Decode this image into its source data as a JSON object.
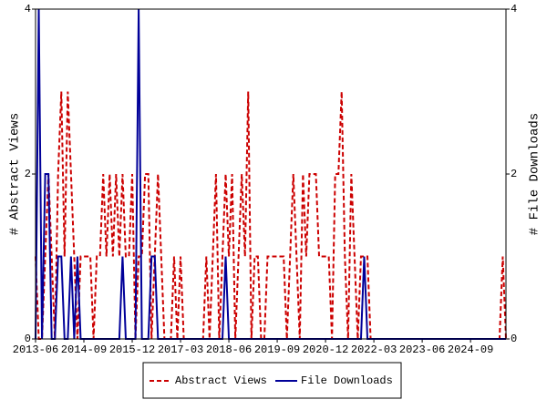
{
  "chart_data": {
    "type": "line",
    "y_label": "# Abstract Views",
    "y2_label": "# File Downloads",
    "categories": [
      "2013-06",
      null,
      null,
      null,
      null,
      null,
      null,
      null,
      null,
      null,
      null,
      null,
      null,
      null,
      null,
      "2014-09",
      null,
      null,
      null,
      null,
      null,
      null,
      null,
      null,
      null,
      null,
      null,
      null,
      null,
      null,
      "2015-12",
      null,
      null,
      null,
      null,
      null,
      null,
      null,
      null,
      null,
      null,
      null,
      null,
      null,
      null,
      "2017-03",
      null,
      null,
      null,
      null,
      null,
      null,
      null,
      null,
      null,
      null,
      null,
      null,
      null,
      null,
      "2018-06",
      null,
      null,
      null,
      null,
      null,
      null,
      null,
      null,
      null,
      null,
      null,
      null,
      null,
      null,
      "2019-09",
      null,
      null,
      null,
      null,
      null,
      null,
      null,
      null,
      null,
      null,
      null,
      null,
      null,
      null,
      "2020-12",
      null,
      null,
      null,
      null,
      null,
      null,
      null,
      null,
      null,
      null,
      null,
      null,
      null,
      null,
      "2022-03",
      null,
      null,
      null,
      null,
      null,
      null,
      null,
      null,
      null,
      null,
      null,
      null,
      null,
      null,
      "2023-06",
      null,
      null,
      null,
      null,
      null,
      null,
      null,
      null,
      null,
      null,
      null,
      null,
      null,
      null,
      "2024-09",
      null,
      null,
      null,
      null,
      null,
      null,
      null,
      null,
      null,
      null,
      null
    ],
    "series": [
      {
        "name": "Abstract Views",
        "color": "#cc0000",
        "dash": true,
        "values": [
          1,
          0,
          0,
          1,
          2,
          1,
          0,
          2,
          3,
          1,
          3,
          2,
          1,
          0,
          1,
          1,
          1,
          1,
          0,
          1,
          1,
          2,
          1,
          2,
          1,
          2,
          1,
          2,
          1,
          1,
          2,
          0,
          1,
          1,
          2,
          2,
          0,
          1,
          2,
          1,
          0,
          0,
          0,
          1,
          0,
          1,
          0,
          0,
          0,
          0,
          0,
          0,
          0,
          1,
          0,
          1,
          2,
          0,
          1,
          2,
          1,
          2,
          0,
          1,
          2,
          1,
          3,
          0,
          1,
          1,
          0,
          0,
          1,
          1,
          1,
          1,
          1,
          1,
          0,
          1,
          2,
          1,
          0,
          2,
          1,
          2,
          2,
          2,
          1,
          1,
          1,
          1,
          0,
          2,
          2,
          3,
          1,
          0,
          2,
          1,
          0,
          1,
          1,
          1,
          0,
          0,
          0,
          0,
          0,
          0,
          0,
          0,
          0,
          0,
          0,
          0,
          0,
          0,
          0,
          0,
          0,
          0,
          0,
          0,
          0,
          0,
          0,
          0,
          0,
          0,
          0,
          0,
          0,
          0,
          0,
          0,
          0,
          0,
          0,
          0,
          0,
          0,
          0,
          0,
          0,
          1,
          0
        ]
      },
      {
        "name": "File Downloads",
        "color": "#000099",
        "dash": false,
        "axis": "y2",
        "values": [
          0,
          4,
          0,
          2,
          2,
          0,
          0,
          1,
          1,
          0,
          0,
          1,
          0,
          1,
          0,
          0,
          0,
          0,
          0,
          0,
          0,
          0,
          0,
          0,
          0,
          0,
          0,
          1,
          0,
          0,
          0,
          0,
          4,
          0,
          0,
          0,
          1,
          1,
          0,
          0,
          0,
          0,
          0,
          0,
          0,
          0,
          0,
          0,
          0,
          0,
          0,
          0,
          0,
          0,
          0,
          0,
          0,
          0,
          0,
          1,
          0,
          0,
          0,
          0,
          0,
          0,
          0,
          0,
          0,
          0,
          0,
          0,
          0,
          0,
          0,
          0,
          0,
          0,
          0,
          0,
          0,
          0,
          0,
          0,
          0,
          0,
          0,
          0,
          0,
          0,
          0,
          0,
          0,
          0,
          0,
          0,
          0,
          0,
          0,
          0,
          0,
          0,
          1,
          0,
          0,
          0,
          0,
          0,
          0,
          0,
          0,
          0,
          0,
          0,
          0,
          0,
          0,
          0,
          0,
          0,
          0,
          0,
          0,
          0,
          0,
          0,
          0,
          0,
          0,
          0,
          0,
          0,
          0,
          0,
          0,
          0,
          0,
          0,
          0,
          0,
          0,
          0,
          0,
          0,
          0,
          0,
          0
        ]
      }
    ],
    "ylim": [
      0,
      4
    ],
    "yticks": [
      0,
      2,
      4
    ],
    "y2lim": [
      0,
      4
    ],
    "y2ticks": [
      0,
      2,
      4
    ],
    "legend": "bottom"
  }
}
